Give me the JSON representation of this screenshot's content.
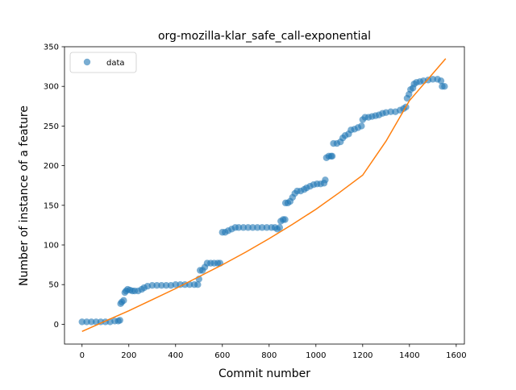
{
  "chart_data": {
    "type": "scatter",
    "title": "org-mozilla-klar_safe_call-exponential",
    "xlabel": "Commit number",
    "ylabel": "Number of instance of a feature",
    "xlim": [
      -75,
      1635
    ],
    "ylim": [
      -25,
      350
    ],
    "xticks": [
      0,
      200,
      400,
      600,
      800,
      1000,
      1200,
      1400,
      1600
    ],
    "yticks": [
      0,
      50,
      100,
      150,
      200,
      250,
      300,
      350
    ],
    "grid": false,
    "legend": {
      "placement": "top-left",
      "entries": [
        {
          "label": "data"
        }
      ]
    },
    "colors": {
      "data": "#1f77b4",
      "fit": "#ff7f0e"
    },
    "series": [
      {
        "name": "data",
        "kind": "scatter",
        "points": [
          [
            0,
            3
          ],
          [
            20,
            3
          ],
          [
            40,
            3
          ],
          [
            60,
            3
          ],
          [
            80,
            3
          ],
          [
            100,
            3
          ],
          [
            120,
            3
          ],
          [
            140,
            4
          ],
          [
            155,
            4
          ],
          [
            162,
            5
          ],
          [
            165,
            26
          ],
          [
            170,
            28
          ],
          [
            178,
            30
          ],
          [
            183,
            40
          ],
          [
            188,
            42
          ],
          [
            195,
            44
          ],
          [
            205,
            43
          ],
          [
            215,
            42
          ],
          [
            225,
            42
          ],
          [
            240,
            42
          ],
          [
            255,
            44
          ],
          [
            265,
            46
          ],
          [
            280,
            48
          ],
          [
            300,
            49
          ],
          [
            320,
            49
          ],
          [
            340,
            49
          ],
          [
            360,
            49
          ],
          [
            380,
            49
          ],
          [
            400,
            50
          ],
          [
            420,
            50
          ],
          [
            440,
            50
          ],
          [
            460,
            50
          ],
          [
            480,
            50
          ],
          [
            495,
            50
          ],
          [
            500,
            57
          ],
          [
            505,
            68
          ],
          [
            515,
            68
          ],
          [
            525,
            72
          ],
          [
            535,
            77
          ],
          [
            550,
            77
          ],
          [
            565,
            77
          ],
          [
            580,
            77
          ],
          [
            590,
            77
          ],
          [
            600,
            116
          ],
          [
            612,
            116
          ],
          [
            625,
            118
          ],
          [
            640,
            120
          ],
          [
            655,
            122
          ],
          [
            670,
            122
          ],
          [
            690,
            122
          ],
          [
            710,
            122
          ],
          [
            730,
            122
          ],
          [
            750,
            122
          ],
          [
            770,
            122
          ],
          [
            790,
            122
          ],
          [
            810,
            122
          ],
          [
            825,
            122
          ],
          [
            835,
            120
          ],
          [
            845,
            122
          ],
          [
            850,
            130
          ],
          [
            860,
            132
          ],
          [
            868,
            132
          ],
          [
            870,
            153
          ],
          [
            880,
            153
          ],
          [
            890,
            155
          ],
          [
            900,
            160
          ],
          [
            910,
            165
          ],
          [
            920,
            168
          ],
          [
            935,
            168
          ],
          [
            950,
            170
          ],
          [
            960,
            172
          ],
          [
            975,
            174
          ],
          [
            990,
            176
          ],
          [
            1005,
            177
          ],
          [
            1020,
            177
          ],
          [
            1035,
            178
          ],
          [
            1040,
            182
          ],
          [
            1045,
            210
          ],
          [
            1055,
            212
          ],
          [
            1065,
            212
          ],
          [
            1070,
            212
          ],
          [
            1075,
            228
          ],
          [
            1090,
            228
          ],
          [
            1105,
            230
          ],
          [
            1115,
            235
          ],
          [
            1125,
            238
          ],
          [
            1140,
            240
          ],
          [
            1150,
            245
          ],
          [
            1165,
            246
          ],
          [
            1180,
            248
          ],
          [
            1195,
            250
          ],
          [
            1200,
            258
          ],
          [
            1210,
            261
          ],
          [
            1225,
            261
          ],
          [
            1240,
            262
          ],
          [
            1255,
            263
          ],
          [
            1270,
            264
          ],
          [
            1285,
            266
          ],
          [
            1300,
            267
          ],
          [
            1320,
            268
          ],
          [
            1340,
            268
          ],
          [
            1360,
            270
          ],
          [
            1375,
            272
          ],
          [
            1385,
            274
          ],
          [
            1390,
            285
          ],
          [
            1398,
            290
          ],
          [
            1405,
            296
          ],
          [
            1415,
            298
          ],
          [
            1420,
            303
          ],
          [
            1430,
            305
          ],
          [
            1445,
            306
          ],
          [
            1460,
            307
          ],
          [
            1480,
            308
          ],
          [
            1500,
            309
          ],
          [
            1520,
            309
          ],
          [
            1535,
            307
          ],
          [
            1540,
            300
          ],
          [
            1550,
            300
          ]
        ]
      },
      {
        "kind": "line",
        "points": [
          [
            0,
            -9
          ],
          [
            100,
            4
          ],
          [
            200,
            17
          ],
          [
            300,
            31
          ],
          [
            400,
            45
          ],
          [
            500,
            60
          ],
          [
            600,
            75
          ],
          [
            700,
            91
          ],
          [
            800,
            108
          ],
          [
            900,
            126
          ],
          [
            1000,
            145
          ],
          [
            1100,
            166
          ],
          [
            1200,
            188
          ],
          [
            1300,
            231
          ],
          [
            1400,
            282
          ],
          [
            1555,
            335
          ]
        ]
      }
    ]
  }
}
